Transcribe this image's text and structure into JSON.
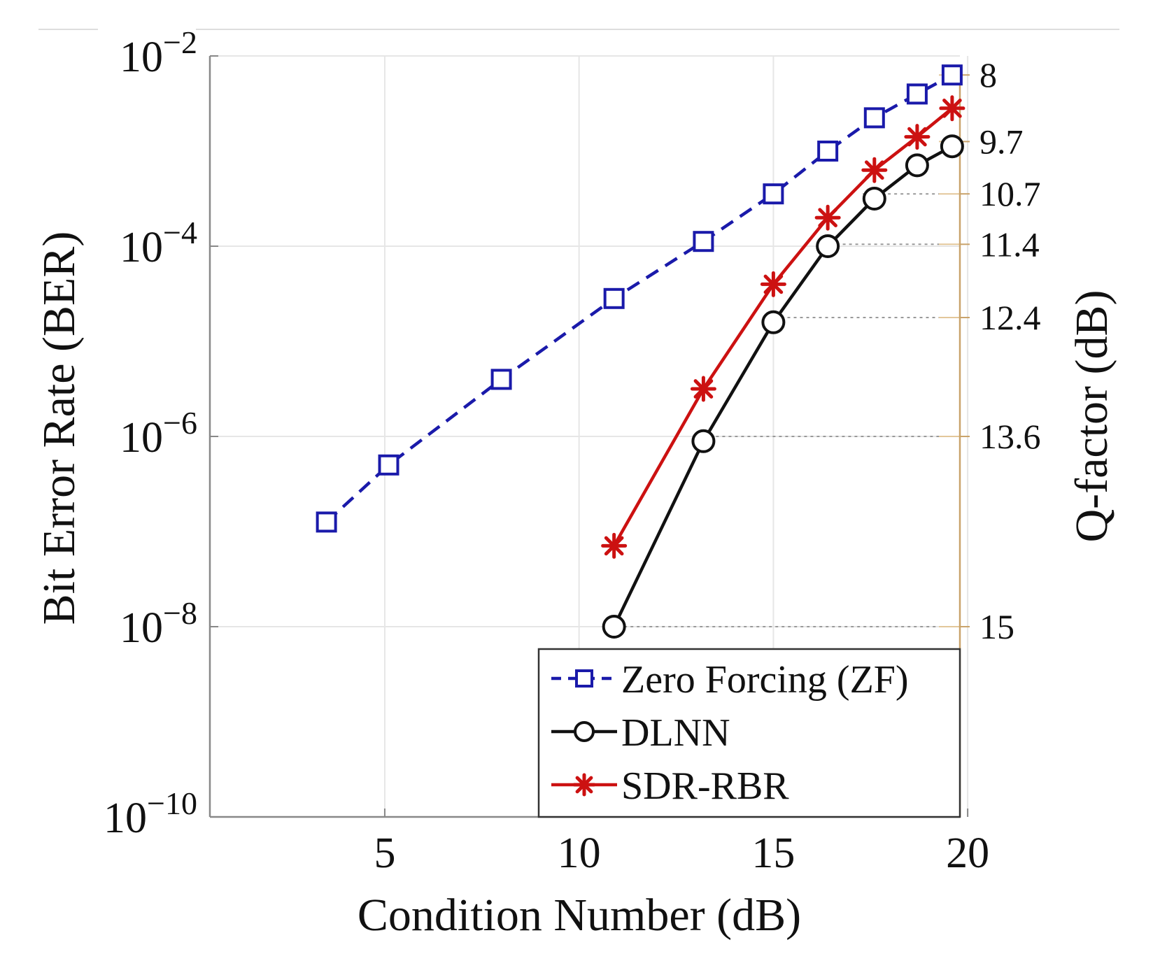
{
  "chart_data": {
    "type": "line",
    "xlabel": "Condition Number (dB)",
    "ylabel": "Bit Error Rate (BER)",
    "y2label": "Q-factor (dB)",
    "yscale": "log",
    "xlim": [
      0.5,
      19.8
    ],
    "ylim_exponent": [
      -10,
      -2
    ],
    "x_ticks": [
      5,
      10,
      15,
      20
    ],
    "x_tick_labels": [
      "5",
      "10",
      "15",
      "20"
    ],
    "y_ticks": [
      -2,
      -4,
      -6,
      -8,
      -10
    ],
    "y_tick_base": "10",
    "y_tick_exponents": [
      "−2",
      "−4",
      "−6",
      "−8",
      "−10"
    ],
    "grid": true,
    "legend_position": "bottom-right",
    "q_factor_ticks": [
      {
        "label": "8",
        "log10_ber": -2.2,
        "line_from_x": null
      },
      {
        "label": "9.7",
        "log10_ber": -2.9,
        "line_from_x": null
      },
      {
        "label": "10.7",
        "log10_ber": -3.45,
        "line_from_x": 17.3
      },
      {
        "label": "11.4",
        "log10_ber": -3.98,
        "line_from_x": 16.3
      },
      {
        "label": "12.4",
        "log10_ber": -4.75,
        "line_from_x": 15.2
      },
      {
        "label": "13.6",
        "log10_ber": -6.0,
        "line_from_x": 13.2
      },
      {
        "label": "15",
        "log10_ber": -8.0,
        "line_from_x": 11.0
      }
    ],
    "series": [
      {
        "name": "Zero Forcing (ZF)",
        "color": "#1a1aaa",
        "style": "dashed",
        "marker": "square",
        "x": [
          3.5,
          5.1,
          8.0,
          10.9,
          13.2,
          15.0,
          16.4,
          17.6,
          18.7,
          19.6
        ],
        "log10_ber": [
          -6.9,
          -6.3,
          -5.4,
          -4.55,
          -3.95,
          -3.45,
          -3.0,
          -2.65,
          -2.4,
          -2.2
        ]
      },
      {
        "name": "DLNN",
        "color": "#111111",
        "style": "solid",
        "marker": "circle",
        "x": [
          10.9,
          13.2,
          15.0,
          16.4,
          17.6,
          18.7,
          19.6
        ],
        "log10_ber": [
          -8.0,
          -6.05,
          -4.8,
          -4.0,
          -3.5,
          -3.15,
          -2.95
        ]
      },
      {
        "name": "SDR-RBR",
        "color": "#cc1111",
        "style": "solid",
        "marker": "star",
        "x": [
          10.9,
          13.2,
          15.0,
          16.4,
          17.6,
          18.7,
          19.6
        ],
        "log10_ber": [
          -7.15,
          -5.5,
          -4.4,
          -3.7,
          -3.2,
          -2.85,
          -2.55
        ]
      }
    ]
  }
}
